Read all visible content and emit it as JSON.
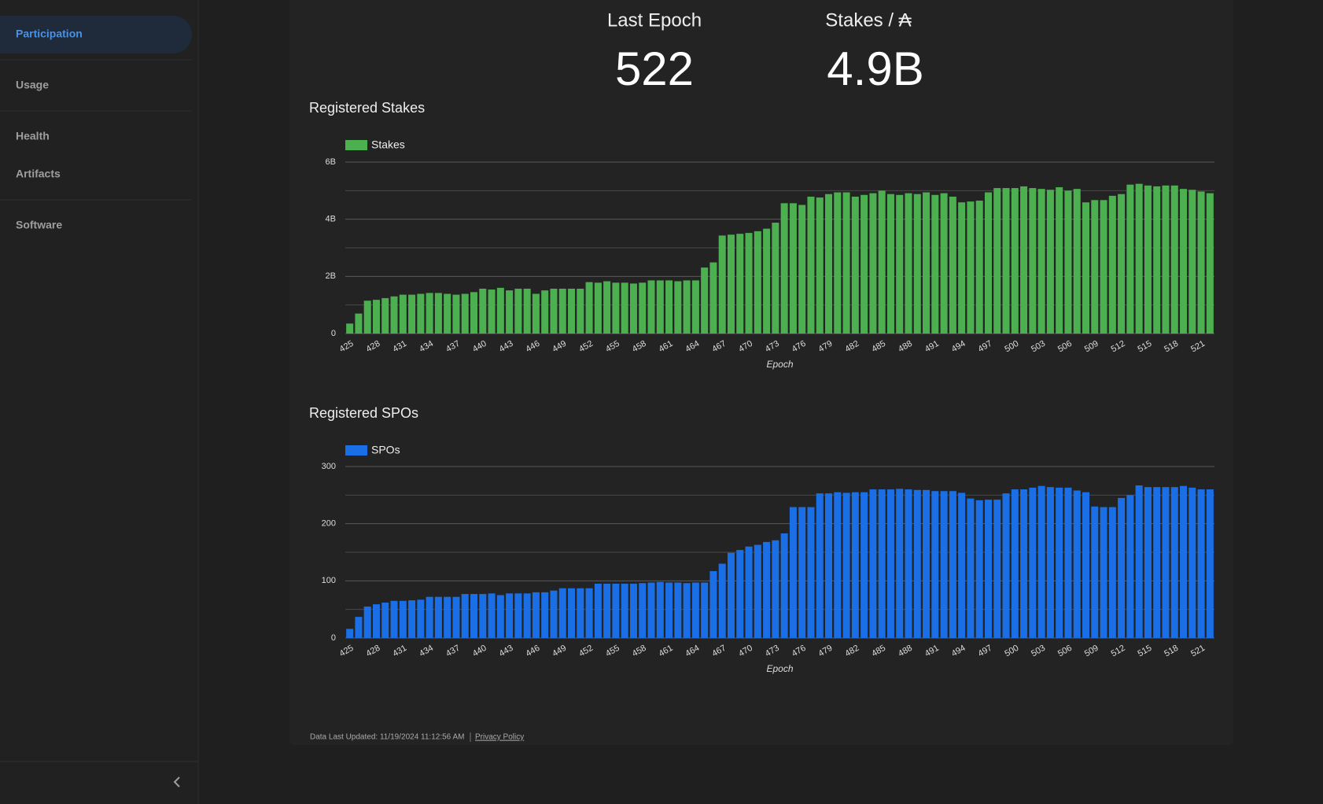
{
  "nav": {
    "items": [
      "Participation",
      "Usage",
      "Health",
      "Artifacts",
      "Software"
    ]
  },
  "stats": [
    {
      "label": "Last Epoch",
      "value": "522"
    },
    {
      "label": "Stakes / ₳",
      "value": "4.9B"
    }
  ],
  "chart_data": [
    {
      "type": "bar",
      "title": "Registered Stakes",
      "xlabel": "Epoch",
      "legend": "top-left",
      "grid": true,
      "categories": [
        425,
        null,
        null,
        428,
        null,
        null,
        431,
        null,
        null,
        434,
        null,
        null,
        437,
        null,
        null,
        440,
        null,
        null,
        443,
        null,
        null,
        446,
        null,
        null,
        449,
        null,
        null,
        452,
        null,
        null,
        455,
        null,
        null,
        458,
        null,
        null,
        461,
        null,
        null,
        464,
        null,
        null,
        467,
        null,
        null,
        470,
        null,
        null,
        473,
        null,
        null,
        476,
        null,
        null,
        479,
        null,
        null,
        482,
        null,
        null,
        485,
        null,
        null,
        488,
        null,
        null,
        491,
        null,
        null,
        494,
        null,
        null,
        497,
        null,
        null,
        500,
        null,
        null,
        503,
        null,
        null,
        506,
        null,
        null,
        509,
        null,
        null,
        512,
        null,
        null,
        515,
        null,
        null,
        518,
        null,
        null,
        521,
        null
      ],
      "series": [
        {
          "name": "Stakes",
          "color": "#4caf50",
          "values": [
            350000000.0,
            700000000.0,
            1150000000.0,
            1180000000.0,
            1240000000.0,
            1300000000.0,
            1360000000.0,
            1360000000.0,
            1390000000.0,
            1420000000.0,
            1420000000.0,
            1390000000.0,
            1360000000.0,
            1390000000.0,
            1450000000.0,
            1570000000.0,
            1540000000.0,
            1600000000.0,
            1510000000.0,
            1570000000.0,
            1570000000.0,
            1390000000.0,
            1510000000.0,
            1570000000.0,
            1570000000.0,
            1570000000.0,
            1570000000.0,
            1800000000.0,
            1780000000.0,
            1830000000.0,
            1780000000.0,
            1780000000.0,
            1750000000.0,
            1780000000.0,
            1860000000.0,
            1860000000.0,
            1860000000.0,
            1830000000.0,
            1860000000.0,
            1860000000.0,
            2310000000.0,
            2490000000.0,
            3430000000.0,
            3460000000.0,
            3490000000.0,
            3520000000.0,
            3580000000.0,
            3670000000.0,
            3880000000.0,
            4560000000.0,
            4560000000.0,
            4500000000.0,
            4790000000.0,
            4760000000.0,
            4880000000.0,
            4940000000.0,
            4940000000.0,
            4790000000.0,
            4850000000.0,
            4910000000.0,
            5000000000.0,
            4880000000.0,
            4850000000.0,
            4910000000.0,
            4880000000.0,
            4940000000.0,
            4850000000.0,
            4910000000.0,
            4790000000.0,
            4590000000.0,
            4620000000.0,
            4650000000.0,
            4940000000.0,
            5090000000.0,
            5090000000.0,
            5090000000.0,
            5150000000.0,
            5090000000.0,
            5060000000.0,
            5030000000.0,
            5120000000.0,
            5000000000.0,
            5060000000.0,
            4590000000.0,
            4670000000.0,
            4670000000.0,
            4820000000.0,
            4880000000.0,
            5210000000.0,
            5240000000.0,
            5180000000.0,
            5150000000.0,
            5180000000.0,
            5180000000.0,
            5060000000.0,
            5030000000.0,
            4970000000.0,
            4910000000.0
          ]
        }
      ],
      "ylim": [
        0,
        6000000000.0
      ],
      "yticks": [
        0,
        {
          "value": 2000000000.0,
          "label": "2B"
        },
        {
          "value": 4000000000.0,
          "label": "4B"
        },
        {
          "value": 6000000000.0,
          "label": "6B"
        }
      ],
      "minor_yticks": [
        1000000000.0,
        3000000000.0,
        5000000000.0
      ]
    },
    {
      "type": "bar",
      "title": "Registered SPOs",
      "xlabel": "Epoch",
      "legend": "top-left",
      "grid": true,
      "categories": [
        425,
        null,
        null,
        428,
        null,
        null,
        431,
        null,
        null,
        434,
        null,
        null,
        437,
        null,
        null,
        440,
        null,
        null,
        443,
        null,
        null,
        446,
        null,
        null,
        449,
        null,
        null,
        452,
        null,
        null,
        455,
        null,
        null,
        458,
        null,
        null,
        461,
        null,
        null,
        464,
        null,
        null,
        467,
        null,
        null,
        470,
        null,
        null,
        473,
        null,
        null,
        476,
        null,
        null,
        479,
        null,
        null,
        482,
        null,
        null,
        485,
        null,
        null,
        488,
        null,
        null,
        491,
        null,
        null,
        494,
        null,
        null,
        497,
        null,
        null,
        500,
        null,
        null,
        503,
        null,
        null,
        506,
        null,
        null,
        509,
        null,
        null,
        512,
        null,
        null,
        515,
        null,
        null,
        518,
        null,
        null,
        521,
        null
      ],
      "series": [
        {
          "name": "SPOs",
          "color": "#1a6fe6",
          "values": [
            16,
            37,
            55,
            59,
            62,
            65,
            65,
            66,
            67,
            72,
            72,
            72,
            72,
            77,
            77,
            77,
            78,
            75,
            78,
            78,
            78,
            80,
            80,
            83,
            87,
            87,
            87,
            87,
            95,
            95,
            95,
            95,
            95,
            96,
            97,
            98,
            97,
            97,
            96,
            97,
            97,
            117,
            130,
            149,
            154,
            160,
            163,
            168,
            171,
            183,
            229,
            229,
            229,
            253,
            253,
            255,
            254,
            255,
            255,
            260,
            260,
            260,
            261,
            260,
            259,
            259,
            257,
            257,
            257,
            254,
            244,
            241,
            242,
            242,
            253,
            260,
            260,
            263,
            266,
            264,
            263,
            263,
            258,
            255,
            230,
            229,
            229,
            245,
            250,
            267,
            264,
            264,
            264,
            264,
            266,
            263,
            260,
            260
          ]
        }
      ],
      "ylim": [
        0,
        300
      ],
      "yticks": [
        0,
        100,
        200,
        300
      ],
      "minor_yticks": [
        50,
        150,
        250
      ]
    }
  ],
  "footer": {
    "updated": "Data Last Updated: 11/19/2024 11:12:56 AM",
    "link": "Privacy Policy"
  }
}
